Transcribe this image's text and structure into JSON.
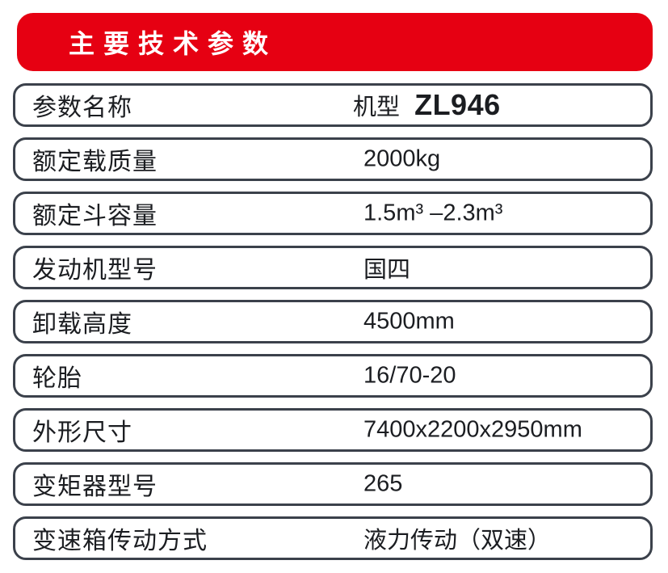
{
  "header": {
    "title": "主要技术参数"
  },
  "table": {
    "rows": [
      {
        "label": "参数名称",
        "value_prefix": "机型",
        "value_model": "ZL946"
      },
      {
        "label": "额定载质量",
        "value": "2000kg"
      },
      {
        "label": "额定斗容量",
        "value": "1.5m³ –2.3m³"
      },
      {
        "label": "发动机型号",
        "value": "国四"
      },
      {
        "label": "卸载高度",
        "value": "4500mm"
      },
      {
        "label": "轮胎",
        "value": "16/70-20"
      },
      {
        "label": "外形尺寸",
        "value": "7400x2200x2950mm"
      },
      {
        "label": "变矩器型号",
        "value": "265"
      },
      {
        "label": "变速箱传动方式",
        "value": "液力传动（双速）"
      }
    ]
  },
  "colors": {
    "brand_red": "#e60012",
    "banner_text": "#ffffff",
    "border_dark": "#3b414b",
    "text_dark": "#1b1d21",
    "page_background": "#ffffff"
  }
}
